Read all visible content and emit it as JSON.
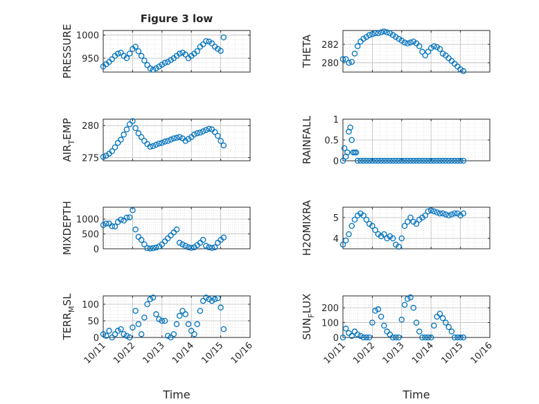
{
  "chart_data": [
    {
      "type": "scatter",
      "title": "Figure 3 low",
      "ylabel": "PRESSURE",
      "xlabel": "",
      "xlim": [
        0,
        5
      ],
      "ylim": [
        920,
        1010
      ],
      "yticks": [
        950,
        1000
      ],
      "xticklabels": [],
      "minor_grid": true,
      "marker": "open-circle",
      "color": "#0072BD",
      "x": [
        0.0,
        0.1,
        0.2,
        0.3,
        0.4,
        0.5,
        0.6,
        0.7,
        0.8,
        0.9,
        1.0,
        1.1,
        1.2,
        1.3,
        1.4,
        1.5,
        1.6,
        1.7,
        1.8,
        1.9,
        2.0,
        2.1,
        2.2,
        2.3,
        2.4,
        2.5,
        2.6,
        2.7,
        2.8,
        2.9,
        3.0,
        3.1,
        3.2,
        3.3,
        3.4,
        3.5,
        3.6,
        3.7,
        3.8,
        3.9,
        4.0,
        4.1
      ],
      "y": [
        932,
        937,
        942,
        948,
        955,
        960,
        962,
        955,
        950,
        960,
        970,
        975,
        965,
        955,
        945,
        935,
        928,
        925,
        928,
        932,
        936,
        940,
        942,
        946,
        950,
        955,
        960,
        962,
        958,
        950,
        955,
        960,
        965,
        975,
        980,
        987,
        986,
        982,
        975,
        970,
        966,
        995
      ]
    },
    {
      "type": "scatter",
      "title": "",
      "ylabel": "THETA",
      "xlabel": "",
      "xlim": [
        0,
        5
      ],
      "ylim": [
        279.0,
        283.5
      ],
      "yticks": [
        280,
        282
      ],
      "xticklabels": [],
      "minor_grid": true,
      "marker": "open-circle",
      "color": "#0072BD",
      "x": [
        0.0,
        0.1,
        0.2,
        0.3,
        0.4,
        0.5,
        0.6,
        0.7,
        0.8,
        0.9,
        1.0,
        1.1,
        1.2,
        1.3,
        1.4,
        1.5,
        1.6,
        1.7,
        1.8,
        1.9,
        2.0,
        2.1,
        2.2,
        2.3,
        2.4,
        2.5,
        2.6,
        2.7,
        2.8,
        2.9,
        3.0,
        3.1,
        3.2,
        3.3,
        3.4,
        3.5,
        3.6,
        3.7,
        3.8,
        3.9,
        4.0,
        4.1
      ],
      "y": [
        280.4,
        280.4,
        280.0,
        280.1,
        281.0,
        281.8,
        282.3,
        282.6,
        282.8,
        283.0,
        283.1,
        283.2,
        283.2,
        283.3,
        283.4,
        283.3,
        283.2,
        283.0,
        282.8,
        282.6,
        282.4,
        282.2,
        282.1,
        282.2,
        282.3,
        282.1,
        281.8,
        281.2,
        280.8,
        281.2,
        281.6,
        281.8,
        281.7,
        281.5,
        281.0,
        280.8,
        280.5,
        280.2,
        279.9,
        279.6,
        279.3,
        279.1
      ]
    },
    {
      "type": "scatter",
      "title": "",
      "ylabel": "AIR_TEMP",
      "xlabel": "",
      "xlim": [
        0,
        5
      ],
      "ylim": [
        274.5,
        281.0
      ],
      "yticks": [
        275,
        280
      ],
      "xticklabels": [],
      "minor_grid": true,
      "marker": "open-circle",
      "color": "#0072BD",
      "x": [
        0.0,
        0.1,
        0.2,
        0.3,
        0.4,
        0.5,
        0.6,
        0.7,
        0.8,
        0.9,
        1.0,
        1.1,
        1.2,
        1.3,
        1.4,
        1.5,
        1.6,
        1.7,
        1.8,
        1.9,
        2.0,
        2.1,
        2.2,
        2.3,
        2.4,
        2.5,
        2.6,
        2.7,
        2.8,
        2.9,
        3.0,
        3.1,
        3.2,
        3.3,
        3.4,
        3.5,
        3.6,
        3.7,
        3.8,
        3.9,
        4.0,
        4.1
      ],
      "y": [
        275.1,
        275.3,
        275.6,
        276.0,
        276.6,
        277.3,
        277.8,
        278.6,
        279.4,
        280.2,
        280.7,
        279.6,
        278.8,
        278.2,
        277.6,
        277.1,
        276.7,
        276.8,
        277.0,
        277.2,
        277.3,
        277.5,
        277.6,
        277.8,
        278.0,
        278.1,
        278.2,
        278.0,
        277.6,
        277.9,
        278.2,
        278.6,
        278.8,
        278.9,
        279.1,
        279.3,
        279.5,
        279.4,
        279.0,
        278.4,
        277.6,
        276.9
      ]
    },
    {
      "type": "scatter",
      "title": "",
      "ylabel": "RAINFALL",
      "xlabel": "",
      "xlim": [
        0,
        5
      ],
      "ylim": [
        0,
        1
      ],
      "yticks": [
        0,
        0.5,
        1
      ],
      "xticklabels": [],
      "minor_grid": true,
      "marker": "open-circle",
      "color": "#0072BD",
      "x": [
        0.0,
        0.05,
        0.1,
        0.15,
        0.2,
        0.25,
        0.3,
        0.35,
        0.4,
        0.45,
        0.5,
        0.6,
        0.7,
        0.8,
        0.9,
        1.0,
        1.1,
        1.2,
        1.3,
        1.4,
        1.5,
        1.6,
        1.7,
        1.8,
        1.9,
        2.0,
        2.1,
        2.2,
        2.3,
        2.4,
        2.5,
        2.6,
        2.7,
        2.8,
        2.9,
        3.0,
        3.1,
        3.2,
        3.3,
        3.4,
        3.5,
        3.6,
        3.7,
        3.8,
        3.9,
        4.0,
        4.1
      ],
      "y": [
        0.0,
        0.3,
        0.1,
        0.2,
        0.7,
        0.8,
        0.5,
        0.2,
        0.2,
        0.2,
        0.0,
        0.0,
        0.0,
        0.0,
        0.0,
        0.0,
        0.0,
        0.0,
        0.0,
        0.0,
        0.0,
        0.0,
        0.0,
        0.0,
        0.0,
        0.0,
        0.0,
        0.0,
        0.0,
        0.0,
        0.0,
        0.0,
        0.0,
        0.0,
        0.0,
        0.0,
        0.0,
        0.0,
        0.0,
        0.0,
        0.0,
        0.0,
        0.0,
        0.0,
        0.0,
        0.0,
        0.0
      ]
    },
    {
      "type": "scatter",
      "title": "",
      "ylabel": "MIXDEPTH",
      "xlabel": "",
      "xlim": [
        0,
        5
      ],
      "ylim": [
        0,
        1400
      ],
      "yticks": [
        0,
        500,
        1000
      ],
      "xticklabels": [],
      "minor_grid": true,
      "marker": "open-circle",
      "color": "#0072BD",
      "x": [
        0.0,
        0.1,
        0.2,
        0.3,
        0.4,
        0.5,
        0.6,
        0.7,
        0.8,
        0.9,
        1.0,
        1.1,
        1.2,
        1.3,
        1.4,
        1.5,
        1.6,
        1.7,
        1.8,
        1.9,
        2.0,
        2.1,
        2.2,
        2.3,
        2.4,
        2.5,
        2.6,
        2.7,
        2.8,
        2.9,
        3.0,
        3.1,
        3.2,
        3.3,
        3.4,
        3.5,
        3.6,
        3.7,
        3.8,
        3.9,
        4.0,
        4.1
      ],
      "y": [
        800,
        850,
        850,
        760,
        750,
        900,
        980,
        950,
        1050,
        1060,
        1300,
        650,
        400,
        300,
        150,
        20,
        10,
        20,
        40,
        80,
        150,
        250,
        350,
        450,
        550,
        650,
        200,
        150,
        100,
        50,
        30,
        50,
        120,
        200,
        300,
        100,
        50,
        30,
        50,
        200,
        300,
        380
      ]
    },
    {
      "type": "scatter",
      "title": "",
      "ylabel": "H2OMIXRA",
      "xlabel": "",
      "xlim": [
        0,
        5
      ],
      "ylim": [
        3.5,
        5.5
      ],
      "yticks": [
        4,
        5
      ],
      "xticklabels": [],
      "minor_grid": true,
      "marker": "open-circle",
      "color": "#0072BD",
      "x": [
        0.0,
        0.1,
        0.2,
        0.3,
        0.4,
        0.5,
        0.6,
        0.7,
        0.8,
        0.9,
        1.0,
        1.1,
        1.2,
        1.3,
        1.4,
        1.5,
        1.6,
        1.7,
        1.8,
        1.9,
        2.0,
        2.1,
        2.2,
        2.3,
        2.4,
        2.5,
        2.6,
        2.7,
        2.8,
        2.9,
        3.0,
        3.1,
        3.2,
        3.3,
        3.4,
        3.5,
        3.6,
        3.7,
        3.8,
        3.9,
        4.0,
        4.1
      ],
      "y": [
        3.7,
        3.9,
        4.2,
        4.6,
        4.9,
        5.1,
        5.2,
        5.1,
        4.9,
        4.7,
        4.6,
        4.4,
        4.2,
        4.1,
        4.2,
        4.0,
        4.1,
        4.0,
        3.7,
        3.6,
        4.0,
        4.6,
        4.8,
        5.0,
        4.8,
        4.7,
        4.9,
        5.0,
        5.1,
        5.3,
        5.35,
        5.3,
        5.25,
        5.2,
        5.2,
        5.15,
        5.1,
        5.15,
        5.2,
        5.2,
        5.1,
        5.2
      ]
    },
    {
      "type": "scatter",
      "title": "",
      "ylabel": "TERR_MSL",
      "xlabel": "Time",
      "xlim": [
        0,
        5
      ],
      "ylim": [
        0,
        125
      ],
      "yticks": [
        0,
        50,
        100
      ],
      "xticklabels": [
        "10/11",
        "10/12",
        "10/13",
        "10/14",
        "10/15",
        "10/16"
      ],
      "minor_grid": true,
      "marker": "open-circle",
      "color": "#0072BD",
      "x": [
        0.0,
        0.1,
        0.2,
        0.3,
        0.4,
        0.5,
        0.6,
        0.7,
        0.8,
        0.9,
        1.0,
        1.1,
        1.2,
        1.3,
        1.4,
        1.5,
        1.6,
        1.7,
        1.8,
        1.9,
        2.0,
        2.1,
        2.2,
        2.3,
        2.4,
        2.5,
        2.6,
        2.7,
        2.8,
        2.9,
        3.0,
        3.1,
        3.2,
        3.3,
        3.4,
        3.5,
        3.6,
        3.7,
        3.8,
        3.9,
        4.0,
        4.1
      ],
      "y": [
        10,
        5,
        20,
        0,
        10,
        20,
        25,
        10,
        5,
        0,
        30,
        80,
        40,
        10,
        60,
        100,
        115,
        120,
        70,
        55,
        50,
        50,
        5,
        0,
        10,
        40,
        65,
        80,
        70,
        40,
        20,
        10,
        40,
        80,
        110,
        120,
        115,
        110,
        115,
        118,
        90,
        25
      ]
    },
    {
      "type": "scatter",
      "title": "",
      "ylabel": "SUN_FLUX",
      "xlabel": "Time",
      "xlim": [
        0,
        5
      ],
      "ylim": [
        0,
        280
      ],
      "yticks": [
        0,
        100,
        200
      ],
      "xticklabels": [
        "10/11",
        "10/12",
        "10/13",
        "10/14",
        "10/15",
        "10/16"
      ],
      "minor_grid": true,
      "marker": "open-circle",
      "color": "#0072BD",
      "x": [
        0.0,
        0.1,
        0.2,
        0.3,
        0.4,
        0.5,
        0.6,
        0.7,
        0.8,
        0.9,
        1.0,
        1.1,
        1.2,
        1.3,
        1.4,
        1.5,
        1.6,
        1.7,
        1.8,
        1.9,
        2.0,
        2.1,
        2.2,
        2.3,
        2.4,
        2.5,
        2.6,
        2.7,
        2.8,
        2.9,
        3.0,
        3.1,
        3.2,
        3.3,
        3.4,
        3.5,
        3.6,
        3.7,
        3.8,
        3.9,
        4.0,
        4.1
      ],
      "y": [
        0,
        60,
        30,
        10,
        40,
        20,
        10,
        0,
        0,
        0,
        100,
        180,
        190,
        140,
        80,
        40,
        20,
        0,
        0,
        0,
        120,
        220,
        260,
        270,
        200,
        100,
        40,
        0,
        0,
        0,
        0,
        80,
        140,
        160,
        130,
        100,
        70,
        40,
        0,
        0,
        0,
        0
      ]
    }
  ]
}
